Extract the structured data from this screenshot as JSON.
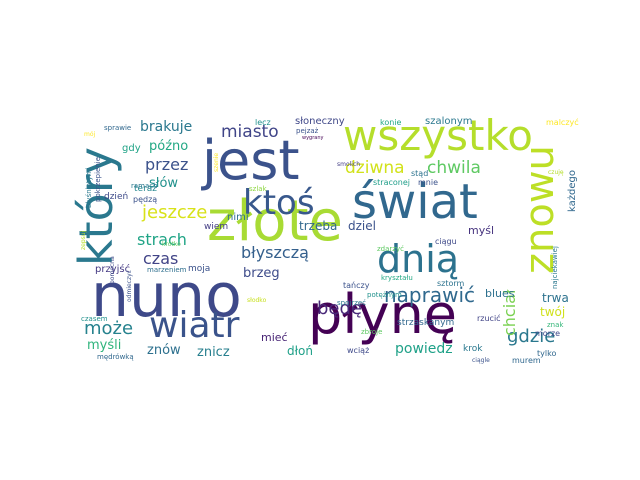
{
  "word_cloud": {
    "words": [
      {
        "text": "jest",
        "color": "#3b528b"
      },
      {
        "text": "złote",
        "color": "#a8db34"
      },
      {
        "text": "wszystko",
        "color": "#b5de2b"
      },
      {
        "text": "świat",
        "color": "#31688e"
      },
      {
        "text": "płynę",
        "color": "#440154"
      },
      {
        "text": "nuno",
        "color": "#3e4989"
      },
      {
        "text": "który",
        "color": "#2a788e"
      },
      {
        "text": "dnią",
        "color": "#2c728e"
      },
      {
        "text": "wiatr",
        "color": "#3a538b"
      },
      {
        "text": "ktoś",
        "color": "#38588c"
      },
      {
        "text": "znowu",
        "color": "#bddf26"
      },
      {
        "text": "naprawić",
        "color": "#30698e"
      },
      {
        "text": "dziwna",
        "color": "#d2e21b"
      },
      {
        "text": "chwila",
        "color": "#5ec962"
      },
      {
        "text": "jeszcze",
        "color": "#d8e219"
      },
      {
        "text": "gdzie",
        "color": "#2a788e"
      },
      {
        "text": "miasto",
        "color": "#404588"
      },
      {
        "text": "błyszczą",
        "color": "#35608d"
      },
      {
        "text": "może",
        "color": "#26828e"
      },
      {
        "text": "chciał",
        "color": "#7ad151"
      },
      {
        "text": "strach",
        "color": "#20a486"
      },
      {
        "text": "przez",
        "color": "#3b528b"
      },
      {
        "text": "brakuje",
        "color": "#2a788e"
      },
      {
        "text": "czas",
        "color": "#414487"
      },
      {
        "text": "będę",
        "color": "#482878"
      },
      {
        "text": "powiedz",
        "color": "#1fa188"
      },
      {
        "text": "myśli",
        "color": "#2fb47c"
      },
      {
        "text": "późno",
        "color": "#22a884"
      },
      {
        "text": "słów",
        "color": "#21918c"
      },
      {
        "text": "brzeg",
        "color": "#3e4c8a"
      },
      {
        "text": "trwa",
        "color": "#2c728e"
      },
      {
        "text": "twój",
        "color": "#d0e11c"
      },
      {
        "text": "dłoń",
        "color": "#1fa088"
      },
      {
        "text": "znicz",
        "color": "#277f8e"
      },
      {
        "text": "znów",
        "color": "#2d708e"
      },
      {
        "text": "trzeba",
        "color": "#31688e"
      },
      {
        "text": "dziel",
        "color": "#3b528b"
      },
      {
        "text": "mieć",
        "color": "#482475"
      },
      {
        "text": "myśl",
        "color": "#46337e"
      },
      {
        "text": "blues",
        "color": "#2d708e"
      },
      {
        "text": "każdego",
        "color": "#31688e"
      },
      {
        "text": "gdy",
        "color": "#20a386"
      },
      {
        "text": "teraz",
        "color": "#24868e"
      },
      {
        "text": "nimi",
        "color": "#2e6e8e"
      },
      {
        "text": "wiem",
        "color": "#433d84"
      },
      {
        "text": "dzień",
        "color": "#3e4a89"
      },
      {
        "text": "przyjść",
        "color": "#443983"
      },
      {
        "text": "moja",
        "color": "#3b528b"
      },
      {
        "text": "marzeniem",
        "color": "#2e6f8e"
      },
      {
        "text": "słoneczny",
        "color": "#3f4788"
      },
      {
        "text": "szalonym",
        "color": "#2a788e"
      },
      {
        "text": "konie",
        "color": "#22a884"
      },
      {
        "text": "lecz",
        "color": "#21918c"
      },
      {
        "text": "pejzaż",
        "color": "#3b528b"
      },
      {
        "text": "malczyć",
        "color": "#fde725"
      },
      {
        "text": "sprawie",
        "color": "#31688e"
      },
      {
        "text": "smolich",
        "color": "#433e85"
      },
      {
        "text": "stąd",
        "color": "#2c728e"
      },
      {
        "text": "straconej",
        "color": "#1f9e89"
      },
      {
        "text": "mnie",
        "color": "#3b528b"
      },
      {
        "text": "ramach",
        "color": "#2a788e"
      },
      {
        "text": "szlak",
        "color": "#8fd744"
      },
      {
        "text": "pędzą",
        "color": "#3b528b"
      },
      {
        "text": "ciągu",
        "color": "#3e4989"
      },
      {
        "text": "zdarzyć",
        "color": "#5ec962"
      },
      {
        "text": "spojrzeć",
        "color": "#2a788e"
      },
      {
        "text": "potężnym",
        "color": "#21918c"
      },
      {
        "text": "strzaskanym",
        "color": "#31688e"
      },
      {
        "text": "sztorm",
        "color": "#2c728e"
      },
      {
        "text": "kryształu",
        "color": "#22a884"
      },
      {
        "text": "tańczy",
        "color": "#3b528b"
      },
      {
        "text": "krok",
        "color": "#2a788e"
      },
      {
        "text": "murem",
        "color": "#31688e"
      },
      {
        "text": "morze",
        "color": "#3e4989"
      },
      {
        "text": "rzucić",
        "color": "#414487"
      },
      {
        "text": "znak",
        "color": "#35b779"
      },
      {
        "text": "tylko",
        "color": "#31688e"
      },
      {
        "text": "ciągle",
        "color": "#3b528b"
      },
      {
        "text": "wciąż",
        "color": "#3e4989"
      },
      {
        "text": "zbroje",
        "color": "#5ec962"
      },
      {
        "text": "najciekawiej",
        "color": "#2a788e"
      },
      {
        "text": "odmieczyć",
        "color": "#3b528b"
      },
      {
        "text": "mędrówką",
        "color": "#31688e"
      },
      {
        "text": "pomocna",
        "color": "#3e4989"
      },
      {
        "text": "czasem",
        "color": "#21918c"
      },
      {
        "text": "zepsuj",
        "color": "#b5de2b"
      },
      {
        "text": "błyśniętymi",
        "color": "#2a788e"
      },
      {
        "text": "pokrzepienie",
        "color": "#3b528b"
      },
      {
        "text": "szenie",
        "color": "#fde725"
      },
      {
        "text": "słodko",
        "color": "#c8e020"
      },
      {
        "text": "mój",
        "color": "#fde725"
      },
      {
        "text": "krótko",
        "color": "#5ec962"
      },
      {
        "text": "czuję",
        "color": "#b5de2b"
      },
      {
        "text": "wygrany",
        "color": "#440154"
      }
    ]
  }
}
